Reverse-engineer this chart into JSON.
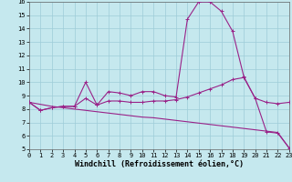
{
  "xlabel": "Windchill (Refroidissement éolien,°C)",
  "x": [
    0,
    1,
    2,
    3,
    4,
    5,
    6,
    7,
    8,
    9,
    10,
    11,
    12,
    13,
    14,
    15,
    16,
    17,
    18,
    19,
    20,
    21,
    22,
    23
  ],
  "line1": [
    8.5,
    7.9,
    8.1,
    8.2,
    8.2,
    10.0,
    8.3,
    9.3,
    9.2,
    9.0,
    9.3,
    9.3,
    9.0,
    8.9,
    14.7,
    16.0,
    16.0,
    15.3,
    13.8,
    10.4,
    8.8,
    6.3,
    6.2,
    5.1
  ],
  "line2": [
    8.5,
    7.9,
    8.1,
    8.2,
    8.2,
    8.8,
    8.3,
    8.6,
    8.6,
    8.5,
    8.5,
    8.6,
    8.6,
    8.7,
    8.9,
    9.2,
    9.5,
    9.8,
    10.2,
    10.35,
    8.8,
    8.5,
    8.4,
    8.5
  ],
  "line3": [
    8.5,
    8.35,
    8.2,
    8.1,
    8.0,
    7.9,
    7.8,
    7.7,
    7.6,
    7.5,
    7.4,
    7.35,
    7.25,
    7.15,
    7.05,
    6.95,
    6.85,
    6.75,
    6.65,
    6.55,
    6.45,
    6.35,
    6.25,
    5.1
  ],
  "line_color": "#992288",
  "bg_color": "#c5e8ee",
  "grid_color": "#9eccd8",
  "ylim_min": 5,
  "ylim_max": 16,
  "xlim_min": 0,
  "xlim_max": 23,
  "yticks": [
    5,
    6,
    7,
    8,
    9,
    10,
    11,
    12,
    13,
    14,
    15,
    16
  ],
  "xticks": [
    0,
    1,
    2,
    3,
    4,
    5,
    6,
    7,
    8,
    9,
    10,
    11,
    12,
    13,
    14,
    15,
    16,
    17,
    18,
    19,
    20,
    21,
    22,
    23
  ],
  "tick_fontsize": 5.0,
  "xlabel_fontsize": 6.0,
  "marker": "+",
  "lw": 0.8,
  "ms": 3.0
}
